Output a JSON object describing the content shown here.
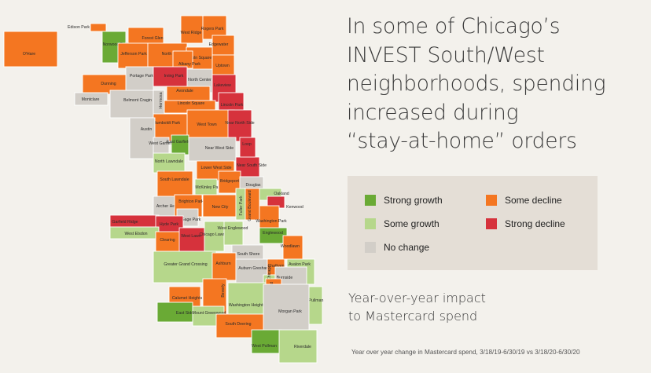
{
  "title_lines": [
    "In some of Chicago’s",
    "INVEST South/West",
    "neighborhoods, spending",
    "increased during",
    "“stay-at-home” orders"
  ],
  "subtitle_lines": [
    "Year-over-year impact",
    "to Mastercard spend"
  ],
  "footnote": "Year over year change in Mastercard spend, 3/18/19-6/30/19 vs 3/18/20-6/30/20",
  "legend": [
    {
      "label": "Strong growth",
      "category": "strong_growth"
    },
    {
      "label": "Some decline",
      "category": "some_decline"
    },
    {
      "label": "Some growth",
      "category": "some_growth"
    },
    {
      "label": "Strong decline",
      "category": "strong_decline"
    },
    {
      "label": "No change",
      "category": "no_change"
    }
  ],
  "colors": {
    "strong_growth": "#6aaa35",
    "some_growth": "#b6d78b",
    "no_change": "#d2cec8",
    "some_decline": "#f47621",
    "strong_decline": "#d6323c"
  },
  "neighborhoods": [
    {
      "name": "Edison Park",
      "category": "some_decline"
    },
    {
      "name": "O'Hare",
      "category": "some_decline"
    },
    {
      "name": "Norwood Park",
      "category": "strong_growth"
    },
    {
      "name": "Forest Glen",
      "category": "some_decline"
    },
    {
      "name": "West Ridge",
      "category": "some_decline"
    },
    {
      "name": "Rogers Park",
      "category": "some_decline"
    },
    {
      "name": "Jefferson Park",
      "category": "some_decline"
    },
    {
      "name": "North Park",
      "category": "some_decline"
    },
    {
      "name": "Edgewater",
      "category": "some_decline"
    },
    {
      "name": "Lincoln Square",
      "category": "some_decline"
    },
    {
      "name": "Albany Park",
      "category": "some_decline"
    },
    {
      "name": "Uptown",
      "category": "some_decline"
    },
    {
      "name": "Portage Park",
      "category": "no_change"
    },
    {
      "name": "Irving Park",
      "category": "strong_decline"
    },
    {
      "name": "North Center",
      "category": "no_change"
    },
    {
      "name": "Dunning",
      "category": "some_decline"
    },
    {
      "name": "Lakeview",
      "category": "strong_decline"
    },
    {
      "name": "Avondale",
      "category": "some_decline"
    },
    {
      "name": "Montclare",
      "category": "no_change"
    },
    {
      "name": "Belmont Cragin",
      "category": "no_change"
    },
    {
      "name": "Hermosa",
      "category": "no_change"
    },
    {
      "name": "Lincoln Square",
      "category": "some_decline"
    },
    {
      "name": "Lincoln Park",
      "category": "strong_decline"
    },
    {
      "name": "Humboldt Park",
      "category": "some_decline"
    },
    {
      "name": "West Town",
      "category": "some_decline"
    },
    {
      "name": "Near North Side",
      "category": "strong_decline"
    },
    {
      "name": "Austin",
      "category": "no_change"
    },
    {
      "name": "West Garfield Park",
      "category": "no_change"
    },
    {
      "name": "East Garfield Park",
      "category": "strong_growth"
    },
    {
      "name": "Near West Side",
      "category": "no_change"
    },
    {
      "name": "Loop",
      "category": "strong_decline"
    },
    {
      "name": "North Lawndale",
      "category": "some_growth"
    },
    {
      "name": "Lower West Side",
      "category": "some_decline"
    },
    {
      "name": "Near South Side",
      "category": "strong_decline"
    },
    {
      "name": "South Lawndale",
      "category": "some_decline"
    },
    {
      "name": "McKinley Park",
      "category": "some_growth"
    },
    {
      "name": "Bridgeport",
      "category": "some_decline"
    },
    {
      "name": "Douglas",
      "category": "no_change"
    },
    {
      "name": "Oakland",
      "category": "some_growth"
    },
    {
      "name": "Archer Heights",
      "category": "no_change"
    },
    {
      "name": "Brighton Park",
      "category": "some_decline"
    },
    {
      "name": "New City",
      "category": "some_decline"
    },
    {
      "name": "Fuller Park",
      "category": "some_growth"
    },
    {
      "name": "Grand Boulevard",
      "category": "some_decline"
    },
    {
      "name": "Kenwood",
      "category": "strong_decline"
    },
    {
      "name": "Garfield Ridge",
      "category": "strong_decline"
    },
    {
      "name": "Gage Park",
      "category": "no_change"
    },
    {
      "name": "Washington Park",
      "category": "some_decline"
    },
    {
      "name": "Hyde Park",
      "category": "strong_decline"
    },
    {
      "name": "West Elsdon",
      "category": "some_growth"
    },
    {
      "name": "Clearing",
      "category": "some_decline"
    },
    {
      "name": "West Lawn",
      "category": "strong_decline"
    },
    {
      "name": "Chicago Lawn",
      "category": "some_growth"
    },
    {
      "name": "West Englewood",
      "category": "some_growth"
    },
    {
      "name": "Englewood",
      "category": "strong_growth"
    },
    {
      "name": "Woodlawn",
      "category": "some_decline"
    },
    {
      "name": "South Shore",
      "category": "no_change"
    },
    {
      "name": "Greater Grand Crossing",
      "category": "some_growth"
    },
    {
      "name": "Ashburn",
      "category": "some_decline"
    },
    {
      "name": "Auburn Gresham",
      "category": "no_change"
    },
    {
      "name": "Chatham",
      "category": "some_decline"
    },
    {
      "name": "Avalon Park",
      "category": "some_growth"
    },
    {
      "name": "South Chicago",
      "category": "some_growth"
    },
    {
      "name": "Burnside",
      "category": "no_change"
    },
    {
      "name": "Calumet Heights",
      "category": "some_decline"
    },
    {
      "name": "Beverly",
      "category": "some_decline"
    },
    {
      "name": "Washington Heights",
      "category": "some_growth"
    },
    {
      "name": "Roseland",
      "category": "some_decline"
    },
    {
      "name": "Pullman",
      "category": "some_growth"
    },
    {
      "name": "East Side",
      "category": "strong_growth"
    },
    {
      "name": "Mount Greenwood",
      "category": "some_growth"
    },
    {
      "name": "Morgan Park",
      "category": "no_change"
    },
    {
      "name": "South Deering",
      "category": "some_decline"
    },
    {
      "name": "West Pullman",
      "category": "strong_growth"
    },
    {
      "name": "Riverdale",
      "category": "some_growth"
    },
    {
      "name": "Hegewisch",
      "category": "some_decline"
    }
  ]
}
